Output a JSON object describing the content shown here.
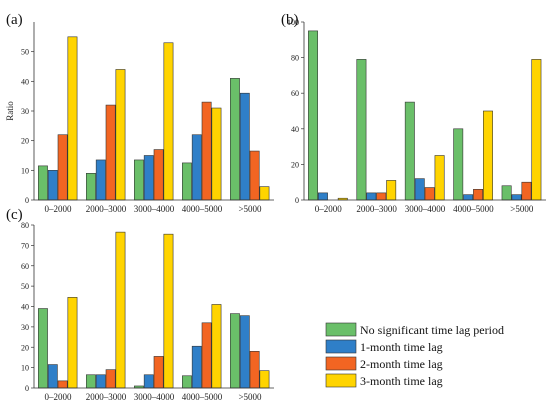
{
  "series_colors": [
    "#6abf69",
    "#2f7fc8",
    "#f26522",
    "#ffd400"
  ],
  "chart_data": [
    {
      "type": "bar",
      "panel_label": "(a)",
      "ylabel": "Ratio",
      "ylim": [
        0,
        60
      ],
      "yticks": [
        0,
        10,
        20,
        30,
        40,
        50
      ],
      "categories": [
        "0–2000",
        "2000–3000",
        "3000–4000",
        "4000–5000",
        ">5000"
      ],
      "series": [
        {
          "name": "No significant time lag period",
          "values": [
            11.5,
            9,
            13.5,
            12.5,
            41
          ]
        },
        {
          "name": "1-month time lag",
          "values": [
            10,
            13.5,
            15,
            22,
            36
          ]
        },
        {
          "name": "2-month time lag",
          "values": [
            22,
            32,
            17,
            33,
            16.5
          ]
        },
        {
          "name": "3-month time lag",
          "values": [
            55,
            44,
            53,
            31,
            4.5
          ]
        }
      ]
    },
    {
      "type": "bar",
      "panel_label": "(b)",
      "ylabel": "",
      "ylim": [
        0,
        100
      ],
      "yticks": [
        0,
        20,
        40,
        60,
        80,
        100
      ],
      "categories": [
        "0–2000",
        "2000–3000",
        "3000–4000",
        "4000–5000",
        ">5000"
      ],
      "series": [
        {
          "name": "No significant time lag period",
          "values": [
            95,
            79,
            55,
            40,
            8
          ]
        },
        {
          "name": "1-month time lag",
          "values": [
            4,
            4,
            12,
            3,
            3
          ]
        },
        {
          "name": "2-month time lag",
          "values": [
            0,
            4,
            7,
            6,
            10
          ]
        },
        {
          "name": "3-month time lag",
          "values": [
            1,
            11,
            25,
            50,
            79
          ]
        }
      ]
    },
    {
      "type": "bar",
      "panel_label": "(c)",
      "ylabel": "",
      "ylim": [
        0,
        80
      ],
      "yticks": [
        0,
        10,
        20,
        30,
        40,
        50,
        60,
        70,
        80
      ],
      "categories": [
        "0–2000",
        "2000–3000",
        "3000–4000",
        "4000–5000",
        ">5000"
      ],
      "series": [
        {
          "name": "No significant time lag period",
          "values": [
            39,
            6.5,
            1,
            6,
            36.5
          ]
        },
        {
          "name": "1-month time lag",
          "values": [
            11.5,
            6.5,
            6.5,
            20.5,
            35.5
          ]
        },
        {
          "name": "2-month time lag",
          "values": [
            3.5,
            9,
            15.5,
            32,
            18
          ]
        },
        {
          "name": "3-month time lag",
          "values": [
            44.5,
            76.5,
            75.5,
            41,
            8.5
          ]
        }
      ]
    }
  ],
  "legend": {
    "items": [
      "No significant time lag period",
      "1-month time lag",
      "2-month time lag",
      "3-month time lag"
    ]
  }
}
